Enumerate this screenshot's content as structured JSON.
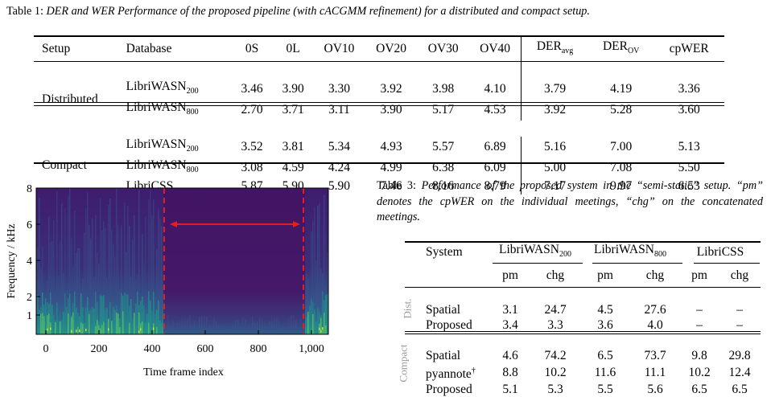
{
  "table1": {
    "caption_prefix": "Table 1:",
    "caption_text": "DER and WER Performance of the proposed pipeline (with cACGMM refinement) for a distributed and compact setup.",
    "headers": [
      "Setup",
      "Database",
      "0S",
      "0L",
      "OV10",
      "OV20",
      "OV30",
      "OV40",
      "DER",
      "avg",
      "DER",
      "OV",
      "cpWER"
    ],
    "groups": [
      {
        "setup": "Distributed",
        "rows": [
          {
            "db": "LibriWASN",
            "db_sub": "200",
            "vals": [
              "3.46",
              "3.90",
              "3.30",
              "3.92",
              "3.98",
              "4.10",
              "3.79",
              "4.19",
              "3.36"
            ]
          },
          {
            "db": "LibriWASN",
            "db_sub": "800",
            "vals": [
              "2.70",
              "3.71",
              "3.11",
              "3.90",
              "5.17",
              "4.53",
              "3.92",
              "5.28",
              "3.60"
            ]
          }
        ]
      },
      {
        "setup": "Compact",
        "rows": [
          {
            "db": "LibriWASN",
            "db_sub": "200",
            "vals": [
              "3.52",
              "3.81",
              "5.34",
              "4.93",
              "5.57",
              "6.89",
              "5.16",
              "7.00",
              "5.13"
            ]
          },
          {
            "db": "LibriWASN",
            "db_sub": "800",
            "vals": [
              "3.08",
              "4.59",
              "4.24",
              "4.99",
              "6.38",
              "6.09",
              "5.00",
              "7.08",
              "5.50"
            ]
          },
          {
            "db": "LibriCSS",
            "db_sub": "",
            "vals": [
              "5.87",
              "5.90",
              "5.90",
              "7.46",
              "8.16",
              "8.79",
              "7.17",
              "9.97",
              "6.53"
            ]
          }
        ]
      }
    ]
  },
  "figure": {
    "ylabel": "Frequency / kHz",
    "xlabel": "Time frame index",
    "yticks": [
      "1",
      "2",
      "4",
      "6",
      "8"
    ],
    "xticks": [
      "0",
      "200",
      "400",
      "600",
      "800",
      "1,000"
    ],
    "dashed_line_color": "#e02020",
    "arrow_color": "#e02020",
    "colormap": [
      "#440154",
      "#3b528b",
      "#21918c",
      "#5ec962",
      "#fde725"
    ]
  },
  "chart_data": {
    "type": "heatmap",
    "title": "",
    "xlabel": "Time frame index",
    "ylabel": "Frequency / kHz",
    "x_ticks": [
      0,
      200,
      400,
      600,
      800,
      1000
    ],
    "y_ticks": [
      1,
      2,
      4,
      6,
      8
    ],
    "xlim": [
      0,
      1100
    ],
    "ylim": [
      0.5,
      8
    ],
    "markers": [
      {
        "kind": "dashed-vertical-line",
        "x": 450
      },
      {
        "kind": "dashed-vertical-line",
        "x": 975
      },
      {
        "kind": "double-arrow",
        "x_from": 470,
        "x_to": 960,
        "y": 6
      }
    ]
  },
  "table3": {
    "caption_prefix": "Table 3:",
    "caption_text": "Performance of the proposed system in the “semi-static” setup. “pm” denotes the cpWER on the individual meetings, “chg” on the concatenated meetings.",
    "col_system": "System",
    "col_groups": [
      {
        "name": "LibriWASN",
        "sub": "200"
      },
      {
        "name": "LibriWASN",
        "sub": "800"
      },
      {
        "name": "LibriCSS",
        "sub": ""
      }
    ],
    "subcols": [
      "pm",
      "chg",
      "pm",
      "chg",
      "pm",
      "chg"
    ],
    "groups": [
      {
        "label": "Dist.",
        "rows": [
          {
            "system": "Spatial",
            "sup": "",
            "vals": [
              "3.1",
              "24.7",
              "4.5",
              "27.6",
              "–",
              "–"
            ]
          },
          {
            "system": "Proposed",
            "sup": "",
            "vals": [
              "3.4",
              "3.3",
              "3.6",
              "4.0",
              "–",
              "–"
            ]
          }
        ]
      },
      {
        "label": "Compact",
        "rows": [
          {
            "system": "Spatial",
            "sup": "",
            "vals": [
              "4.6",
              "74.2",
              "6.5",
              "73.7",
              "9.8",
              "29.8"
            ]
          },
          {
            "system": "pyannote",
            "sup": "†",
            "vals": [
              "8.8",
              "10.2",
              "11.6",
              "11.1",
              "10.2",
              "12.4"
            ]
          },
          {
            "system": "Proposed",
            "sup": "",
            "vals": [
              "5.1",
              "5.3",
              "5.5",
              "5.6",
              "6.5",
              "6.5"
            ]
          }
        ]
      }
    ]
  }
}
